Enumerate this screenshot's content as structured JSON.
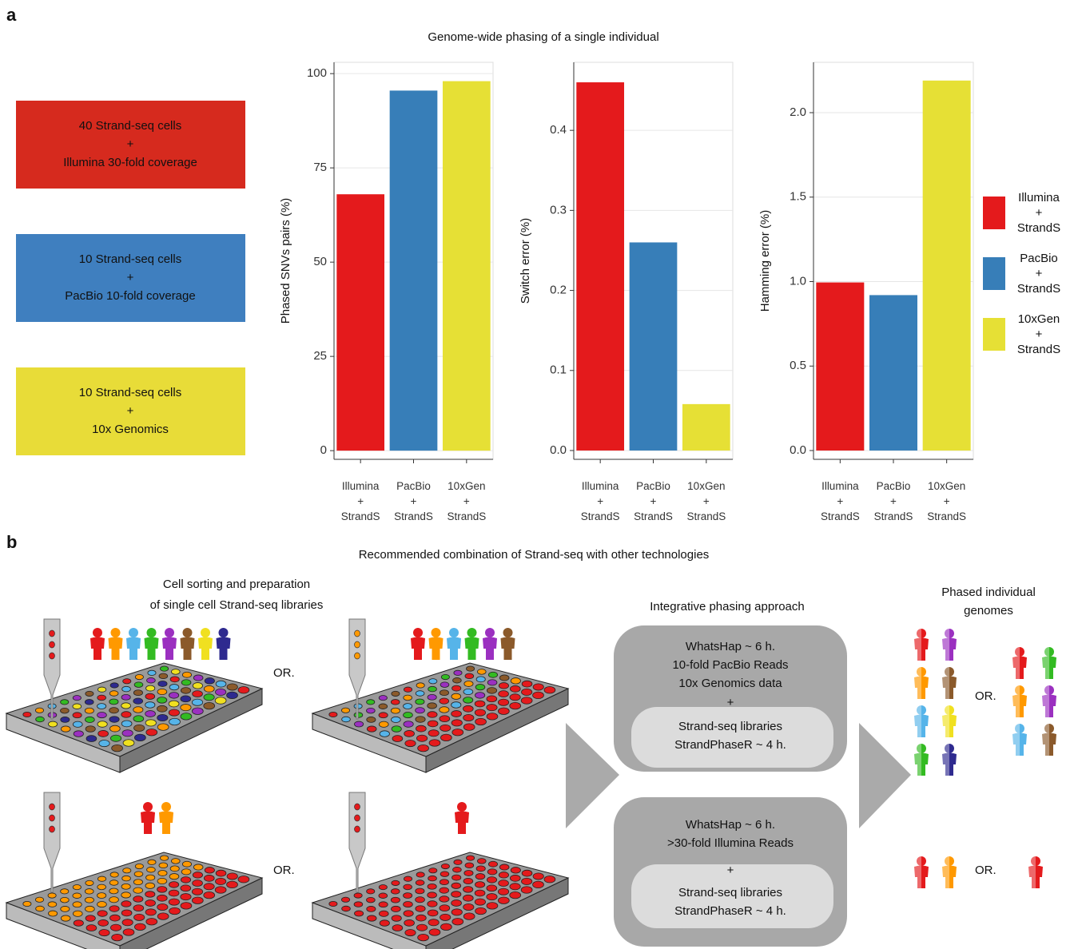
{
  "panel_a": {
    "label": "a",
    "title": "Genome-wide phasing of a single individual",
    "setups": [
      "40 Strand-seq cells\n+\nIllumina 30-fold coverage",
      "10 Strand-seq cells\n+\nPacBio 10-fold coverage",
      "10 Strand-seq cells\n+\n10x Genomics"
    ],
    "setup_colors": [
      "#d62a1e",
      "#3f7fbf",
      "#e8dc38"
    ]
  },
  "chart_data": [
    {
      "type": "bar",
      "y_label": "Phased SNVs pairs (%)",
      "categories": [
        "Illumina\n+\nStrandS",
        "PacBio\n+\nStrandS",
        "10xGen\n+\nStrandS"
      ],
      "values": [
        68,
        95.5,
        98
      ],
      "colors": [
        "#e41a1c",
        "#377eb8",
        "#e6e035"
      ],
      "ylim": [
        -2.3,
        103
      ],
      "yticks": [
        0,
        25,
        50,
        75,
        100
      ],
      "grid": true
    },
    {
      "type": "bar",
      "y_label": "Switch error (%)",
      "categories": [
        "Illumina\n+\nStrandS",
        "PacBio\n+\nStrandS",
        "10xGen\n+\nStrandS"
      ],
      "values": [
        0.46,
        0.26,
        0.058
      ],
      "colors": [
        "#e41a1c",
        "#377eb8",
        "#e6e035"
      ],
      "ylim": [
        -0.011,
        0.485
      ],
      "yticks": [
        {
          "value": 0,
          "label": "0.0"
        },
        0.1,
        0.2,
        0.3,
        0.4
      ],
      "grid": true
    },
    {
      "type": "bar",
      "y_label": "Hamming error (%)",
      "categories": [
        "Illumina\n+\nStrandS",
        "PacBio\n+\nStrandS",
        "10xGen\n+\nStrandS"
      ],
      "values": [
        0.995,
        0.92,
        2.19
      ],
      "colors": [
        "#e41a1c",
        "#377eb8",
        "#e6e035"
      ],
      "ylim": [
        -0.052,
        2.298
      ],
      "yticks": [
        {
          "value": 0,
          "label": "0.0"
        },
        0.5,
        {
          "value": 1,
          "label": "1.0"
        },
        {
          "value": 1.5,
          "label": "1.5"
        },
        {
          "value": 2,
          "label": "2.0"
        }
      ],
      "grid": true
    }
  ],
  "legend": {
    "labels": [
      "Illumina\n+\nStrandS",
      "PacBio\n+\nStrandS",
      "10xGen\n+\nStrandS"
    ],
    "colors": [
      "#e41a1c",
      "#377eb8",
      "#e6e035"
    ],
    "position": "right"
  },
  "panel_b": {
    "label": "b",
    "title": "Recommended combination of Strand-seq with other technologies",
    "sorting_title": "Cell sorting and preparation\nof single cell Strand-seq libraries",
    "or_labels": [
      "OR.",
      "OR.",
      "OR.",
      "OR."
    ],
    "approach_title": "Integrative phasing approach",
    "approaches": [
      {
        "tools": "WhatsHap ~ 6 h.\n10-fold PacBio Reads\n10x Genomics data",
        "plus": "+",
        "strandseq": "Strand-seq libraries\nStrandPhaseR ~ 4 h."
      },
      {
        "tools": "WhatsHap ~ 6 h.\n>30-fold Illumina Reads",
        "plus": "+",
        "strandseq": "Strand-seq libraries\nStrandPhaseR ~ 4 h."
      }
    ],
    "result_title": "Phased individual\ngenomes"
  }
}
